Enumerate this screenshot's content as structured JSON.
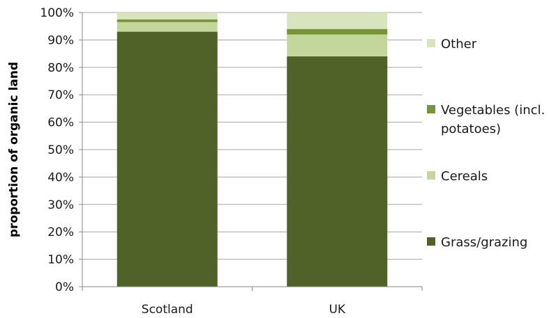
{
  "chart_data": {
    "type": "bar",
    "stacked": true,
    "stack_mode": "percent",
    "categories": [
      "Scotland",
      "UK"
    ],
    "series": [
      {
        "name": "Grass/grazing",
        "values": [
          93,
          84
        ],
        "color": "#4f6228"
      },
      {
        "name": "Cereals",
        "values": [
          3.5,
          8
        ],
        "color": "#c3d69b"
      },
      {
        "name": "Vegetables (incl. potatoes)",
        "values": [
          1,
          2
        ],
        "color": "#77933c"
      },
      {
        "name": "Other",
        "values": [
          2.5,
          6
        ],
        "color": "#d7e4bd"
      }
    ],
    "ylabel": "proportion of organic land",
    "xlabel": "",
    "ylim": [
      0,
      100
    ],
    "yticks": [
      "0%",
      "10%",
      "20%",
      "30%",
      "40%",
      "50%",
      "60%",
      "70%",
      "80%",
      "90%",
      "100%"
    ],
    "grid": true,
    "legend_position": "right",
    "legend_labels": [
      {
        "series": "Other",
        "lines": [
          "Other"
        ]
      },
      {
        "series": "Vegetables (incl. potatoes)",
        "lines": [
          "Vegetables (incl.",
          "potatoes)"
        ]
      },
      {
        "series": "Cereals",
        "lines": [
          "Cereals"
        ]
      },
      {
        "series": "Grass/grazing",
        "lines": [
          "Grass/grazing"
        ]
      }
    ]
  }
}
